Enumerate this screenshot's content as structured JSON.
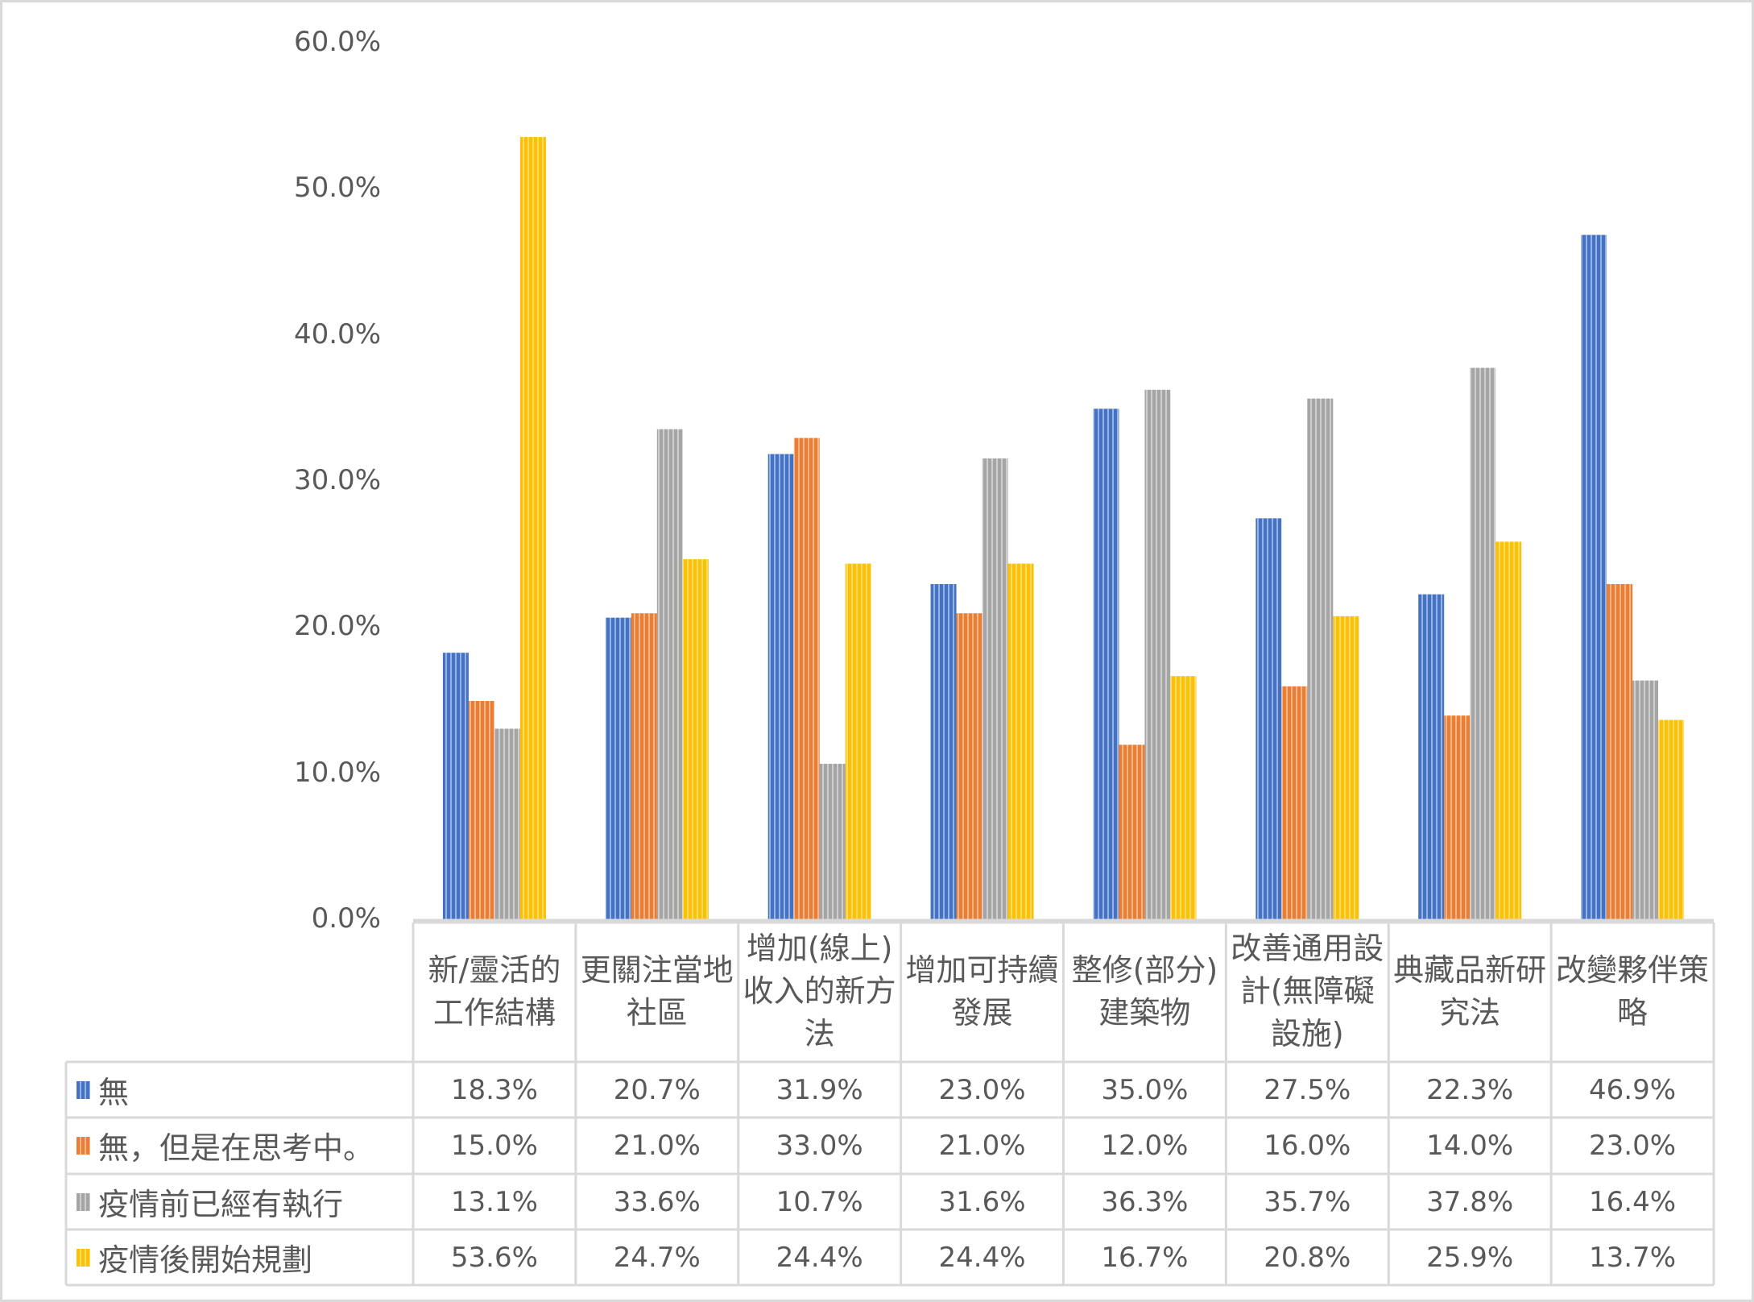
{
  "chart_data": {
    "type": "bar",
    "categories": [
      "新/靈活的工作結構",
      "更關注當地社區",
      "增加(線上)收入的新方法",
      "增加可持續發展",
      "整修(部分)建築物",
      "改善通用設計(無障礙設施)",
      "典藏品新研究法",
      "改變夥伴策略"
    ],
    "series": [
      {
        "name": "無",
        "color": "#4472c4",
        "values": [
          18.3,
          20.7,
          31.9,
          23.0,
          35.0,
          27.5,
          22.3,
          46.9
        ]
      },
      {
        "name": "無，但是在思考中。",
        "color": "#ed7d31",
        "values": [
          15.0,
          21.0,
          33.0,
          21.0,
          12.0,
          16.0,
          14.0,
          23.0
        ]
      },
      {
        "name": "疫情前已經有執行",
        "color": "#a5a5a5",
        "values": [
          13.1,
          33.6,
          10.7,
          31.6,
          36.3,
          35.7,
          37.8,
          16.4
        ]
      },
      {
        "name": "疫情後開始規劃",
        "color": "#ffc000",
        "values": [
          53.6,
          24.7,
          24.4,
          24.4,
          16.7,
          20.8,
          25.9,
          13.7
        ]
      }
    ],
    "ylim": [
      0,
      60
    ],
    "yticks": [
      "0.0%",
      "10.0%",
      "20.0%",
      "30.0%",
      "40.0%",
      "50.0%",
      "60.0%"
    ],
    "grid": false,
    "legend": "data-table",
    "table_values": [
      [
        "18.3%",
        "20.7%",
        "31.9%",
        "23.0%",
        "35.0%",
        "27.5%",
        "22.3%",
        "46.9%"
      ],
      [
        "15.0%",
        "21.0%",
        "33.0%",
        "21.0%",
        "12.0%",
        "16.0%",
        "14.0%",
        "23.0%"
      ],
      [
        "13.1%",
        "33.6%",
        "10.7%",
        "31.6%",
        "36.3%",
        "35.7%",
        "37.8%",
        "16.4%"
      ],
      [
        "53.6%",
        "24.7%",
        "24.4%",
        "24.4%",
        "16.7%",
        "20.8%",
        "25.9%",
        "13.7%"
      ]
    ]
  }
}
